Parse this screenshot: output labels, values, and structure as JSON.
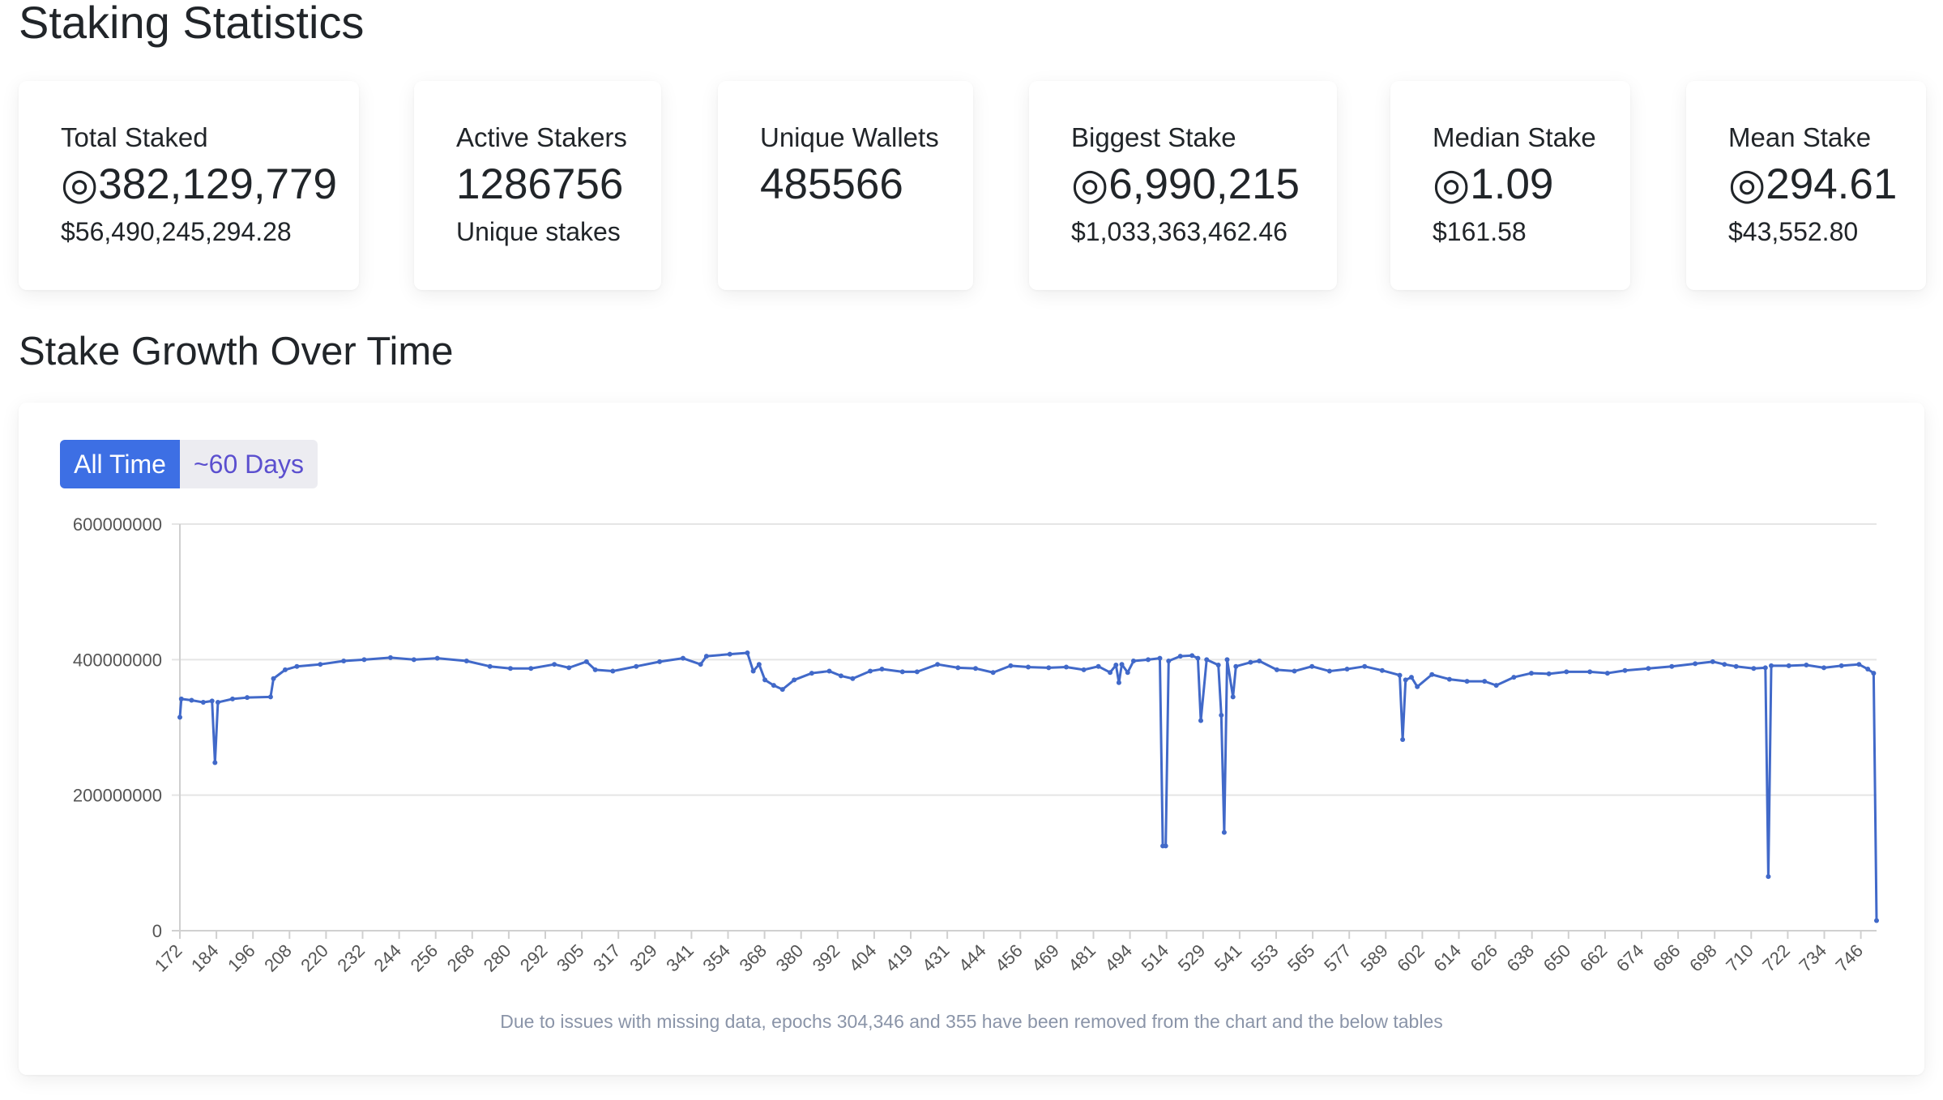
{
  "page": {
    "title": "Staking Statistics"
  },
  "stats": [
    {
      "label": "Total Staked",
      "value": "◎382,129,779",
      "sub": "$56,490,245,294.28"
    },
    {
      "label": "Active Stakers",
      "value": "1286756",
      "sub": "Unique stakes"
    },
    {
      "label": "Unique Wallets",
      "value": "485566",
      "sub": ""
    },
    {
      "label": "Biggest Stake",
      "value": "◎6,990,215",
      "sub": "$1,033,363,462.46"
    },
    {
      "label": "Median Stake",
      "value": "◎1.09",
      "sub": "$161.58"
    },
    {
      "label": "Mean Stake",
      "value": "◎294.61",
      "sub": "$43,552.80"
    }
  ],
  "chart_section": {
    "title": "Stake Growth Over Time",
    "buttons": {
      "all_time": "All Time",
      "sixty_days": "~60 Days"
    },
    "selected": "All Time",
    "note": "Due to issues with missing data, epochs 304,346 and 355 have been removed from the chart and the below tables"
  },
  "colors": {
    "line": "#4169c9",
    "button_active": "#3d6fe4",
    "button_inactive_text": "#5b4fcf",
    "grid": "#e5e5e5",
    "note": "#8a94a8"
  },
  "chart_data": {
    "type": "line",
    "title": "",
    "xlabel": "",
    "ylabel": "",
    "ylim": [
      0,
      600000000
    ],
    "yticks": [
      0,
      200000000,
      400000000,
      600000000
    ],
    "xticks": [
      "172",
      "184",
      "196",
      "208",
      "220",
      "232",
      "244",
      "256",
      "268",
      "280",
      "292",
      "305",
      "317",
      "329",
      "341",
      "354",
      "368",
      "380",
      "392",
      "404",
      "419",
      "431",
      "444",
      "456",
      "469",
      "481",
      "494",
      "514",
      "529",
      "541",
      "553",
      "565",
      "577",
      "589",
      "602",
      "614",
      "626",
      "638",
      "650",
      "662",
      "674",
      "686",
      "698",
      "710",
      "722",
      "734",
      "746"
    ],
    "xlim": [
      172,
      752
    ],
    "grid": true,
    "legend": "none",
    "series": [
      {
        "points": [
          [
            172,
            315000000
          ],
          [
            172.5,
            342000000
          ],
          [
            176,
            340000000
          ],
          [
            180,
            337000000
          ],
          [
            183,
            339000000
          ],
          [
            184,
            248000000
          ],
          [
            185,
            337000000
          ],
          [
            190,
            342000000
          ],
          [
            195,
            344000000
          ],
          [
            203,
            345000000
          ],
          [
            204,
            372000000
          ],
          [
            208,
            385000000
          ],
          [
            212,
            390000000
          ],
          [
            220,
            393000000
          ],
          [
            228,
            398000000
          ],
          [
            235,
            400000000
          ],
          [
            244,
            403000000
          ],
          [
            252,
            400000000
          ],
          [
            260,
            402000000
          ],
          [
            270,
            398000000
          ],
          [
            278,
            390000000
          ],
          [
            285,
            387000000
          ],
          [
            292,
            387000000
          ],
          [
            300,
            393000000
          ],
          [
            305,
            388000000
          ],
          [
            311,
            397000000
          ],
          [
            314,
            385000000
          ],
          [
            320,
            383000000
          ],
          [
            328,
            390000000
          ],
          [
            336,
            397000000
          ],
          [
            344,
            402000000
          ],
          [
            350,
            393000000
          ],
          [
            352,
            405000000
          ],
          [
            360,
            408000000
          ],
          [
            366,
            410000000
          ],
          [
            368,
            383000000
          ],
          [
            370,
            393000000
          ],
          [
            372,
            370000000
          ],
          [
            375,
            362000000
          ],
          [
            378,
            356000000
          ],
          [
            382,
            370000000
          ],
          [
            388,
            380000000
          ],
          [
            394,
            383000000
          ],
          [
            398,
            376000000
          ],
          [
            402,
            372000000
          ],
          [
            408,
            383000000
          ],
          [
            412,
            386000000
          ],
          [
            419,
            382000000
          ],
          [
            424,
            382000000
          ],
          [
            431,
            393000000
          ],
          [
            438,
            388000000
          ],
          [
            444,
            387000000
          ],
          [
            450,
            381000000
          ],
          [
            456,
            391000000
          ],
          [
            462,
            389000000
          ],
          [
            469,
            388000000
          ],
          [
            475,
            389000000
          ],
          [
            481,
            385000000
          ],
          [
            486,
            390000000
          ],
          [
            490,
            381000000
          ],
          [
            492,
            392000000
          ],
          [
            493,
            366000000
          ],
          [
            494,
            393000000
          ],
          [
            496,
            381000000
          ],
          [
            498,
            398000000
          ],
          [
            503,
            400000000
          ],
          [
            507,
            402000000
          ],
          [
            508,
            125000000
          ],
          [
            509,
            125000000
          ],
          [
            510,
            398000000
          ],
          [
            514,
            405000000
          ],
          [
            518,
            406000000
          ],
          [
            520,
            402000000
          ],
          [
            521,
            310000000
          ],
          [
            523,
            400000000
          ],
          [
            527,
            392000000
          ],
          [
            528,
            318000000
          ],
          [
            529,
            145000000
          ],
          [
            530,
            400000000
          ],
          [
            532,
            345000000
          ],
          [
            533,
            390000000
          ],
          [
            538,
            396000000
          ],
          [
            541,
            398000000
          ],
          [
            547,
            385000000
          ],
          [
            553,
            383000000
          ],
          [
            559,
            390000000
          ],
          [
            565,
            383000000
          ],
          [
            571,
            386000000
          ],
          [
            577,
            390000000
          ],
          [
            583,
            384000000
          ],
          [
            589,
            377000000
          ],
          [
            590,
            282000000
          ],
          [
            591,
            370000000
          ],
          [
            593,
            374000000
          ],
          [
            595,
            360000000
          ],
          [
            600,
            378000000
          ],
          [
            606,
            371000000
          ],
          [
            612,
            368000000
          ],
          [
            618,
            368000000
          ],
          [
            622,
            362000000
          ],
          [
            628,
            374000000
          ],
          [
            634,
            380000000
          ],
          [
            640,
            379000000
          ],
          [
            646,
            382000000
          ],
          [
            654,
            382000000
          ],
          [
            660,
            380000000
          ],
          [
            666,
            384000000
          ],
          [
            674,
            387000000
          ],
          [
            682,
            390000000
          ],
          [
            690,
            394000000
          ],
          [
            696,
            397000000
          ],
          [
            700,
            393000000
          ],
          [
            704,
            390000000
          ],
          [
            710,
            387000000
          ],
          [
            714,
            388000000
          ],
          [
            715,
            80000000
          ],
          [
            716,
            391000000
          ],
          [
            722,
            391000000
          ],
          [
            728,
            392000000
          ],
          [
            734,
            388000000
          ],
          [
            740,
            391000000
          ],
          [
            746,
            393000000
          ],
          [
            749,
            386000000
          ],
          [
            751,
            380000000
          ],
          [
            752,
            15000000
          ]
        ]
      }
    ]
  }
}
